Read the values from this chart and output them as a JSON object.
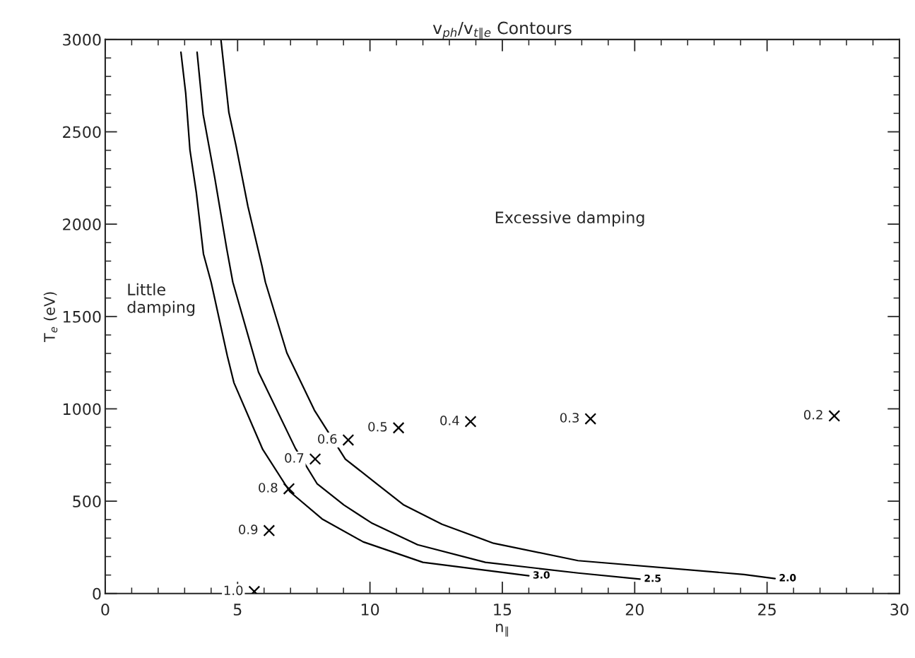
{
  "chart_data": {
    "type": "line",
    "title": "v$_{ph}$/v$_{t∥e}$ Contours",
    "xlabel": "n$_{∥}$",
    "ylabel": "T$_{e}$ (eV)",
    "xlim": [
      0,
      30
    ],
    "xticks": [
      0,
      5,
      10,
      15,
      20,
      25,
      30
    ],
    "ylim": [
      0,
      3000
    ],
    "yticks": [
      0,
      500,
      1000,
      1500,
      2000,
      2500,
      3000
    ],
    "grid": false,
    "legend": false,
    "annotations": [
      "Little\ndamping",
      "Excessive damping",
      {
        "text": "1.0",
        "x": 5.63,
        "y": 11
      },
      {
        "text": "0.9",
        "x": 6.19,
        "y": 341
      },
      {
        "text": "0.8",
        "x": 6.94,
        "y": 567
      },
      {
        "text": "0.7",
        "x": 7.93,
        "y": 728
      },
      {
        "text": "0.6",
        "x": 9.18,
        "y": 831
      },
      {
        "text": "0.5",
        "x": 11.08,
        "y": 897
      },
      {
        "text": "0.4",
        "x": 13.8,
        "y": 931
      },
      {
        "text": "0.3",
        "x": 18.33,
        "y": 946
      },
      {
        "text": "0.2",
        "x": 27.54,
        "y": 962
      }
    ],
    "series": [
      {
        "name": "3.0",
        "color": "#000000",
        "line_style": "solid",
        "marker": "none",
        "x": [
          2.86,
          3.04,
          3.2,
          3.44,
          3.71,
          4.0,
          4.61,
          4.86,
          5.95,
          6.97,
          8.19,
          9.74,
          12.0,
          16.0
        ],
        "values": [
          2931,
          2709,
          2402,
          2172,
          1839,
          1686,
          1288,
          1142,
          780,
          552,
          404,
          280,
          169,
          96
        ]
      },
      {
        "name": "2.5",
        "color": "#000000",
        "line_style": "solid",
        "marker": "none",
        "x": [
          3.47,
          3.7,
          4.14,
          4.59,
          4.82,
          5.79,
          7.18,
          8.0,
          9.02,
          10.05,
          11.8,
          14.36,
          17.86,
          20.2
        ],
        "values": [
          2931,
          2594,
          2249,
          1866,
          1686,
          1199,
          787,
          595,
          479,
          383,
          264,
          169,
          111,
          78
        ]
      },
      {
        "name": "2.0",
        "color": "#000000",
        "line_style": "solid",
        "marker": "none",
        "x": [
          4.37,
          4.67,
          4.94,
          5.39,
          5.92,
          6.05,
          6.86,
          7.9,
          9.07,
          10.25,
          11.28,
          12.72,
          14.67,
          17.86,
          24.13,
          25.3
        ],
        "values": [
          3000,
          2605,
          2425,
          2096,
          1774,
          1686,
          1303,
          993,
          728,
          595,
          479,
          375,
          272,
          178,
          103,
          81
        ]
      },
      {
        "type": "scatter",
        "color": "#000000",
        "marker": "cross",
        "x": [
          5.63,
          6.19,
          6.94,
          7.93,
          9.18,
          11.08,
          13.8,
          18.33,
          27.54
        ],
        "values": [
          11,
          341,
          567,
          728,
          831,
          897,
          931,
          946,
          962
        ]
      }
    ]
  }
}
